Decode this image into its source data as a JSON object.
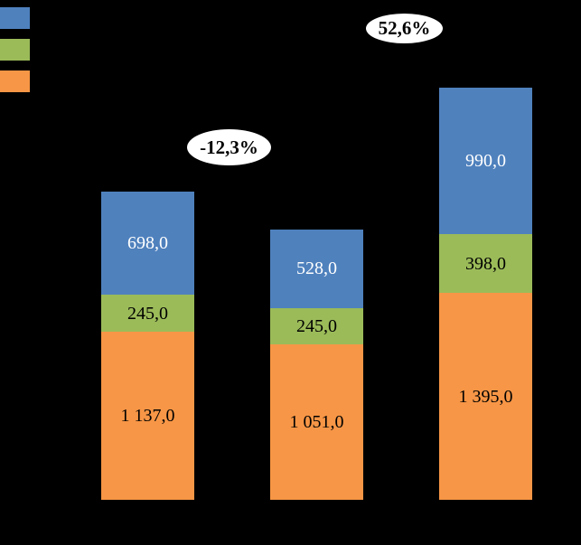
{
  "page": {
    "background": "#000000"
  },
  "legend": {
    "position": "top-left",
    "items": [
      {
        "name": "series-blue",
        "color": "#4F81BD",
        "label": ""
      },
      {
        "name": "series-green",
        "color": "#9BBB59",
        "label": ""
      },
      {
        "name": "series-orange",
        "color": "#F79646",
        "label": ""
      }
    ]
  },
  "chart_data": {
    "type": "bar",
    "variant": "stacked-column",
    "title": "",
    "xlabel": "",
    "ylabel": "",
    "axis_visible": false,
    "gridlines": false,
    "background": "#000000",
    "value_format": "comma decimal separator, space thousands separator, one decimal place",
    "categories": [
      "",
      "",
      ""
    ],
    "series": [
      {
        "name": "orange-bottom",
        "color": "#F79646",
        "label_color": "#000000",
        "values": [
          1137.0,
          1051.0,
          1395.0
        ],
        "labels": [
          "1 137,0",
          "1 051,0",
          "1 395,0"
        ]
      },
      {
        "name": "green-middle",
        "color": "#9BBB59",
        "label_color": "#000000",
        "values": [
          245.0,
          245.0,
          398.0
        ],
        "labels": [
          "245,0",
          "245,0",
          "398,0"
        ]
      },
      {
        "name": "blue-top",
        "color": "#4F81BD",
        "label_color": "#FFFFFF",
        "values": [
          698.0,
          528.0,
          990.0
        ],
        "labels": [
          "698,0",
          "528,0",
          "990,0"
        ]
      }
    ],
    "totals": [
      2080.0,
      1824.0,
      2783.0
    ],
    "annotations": [
      {
        "text": "-12,3%",
        "shape": "white-ellipse",
        "refers_to": "change from bar 1 to bar 2"
      },
      {
        "text": "52,6%",
        "shape": "white-ellipse",
        "refers_to": "change from bar 2 to bar 3"
      }
    ]
  }
}
